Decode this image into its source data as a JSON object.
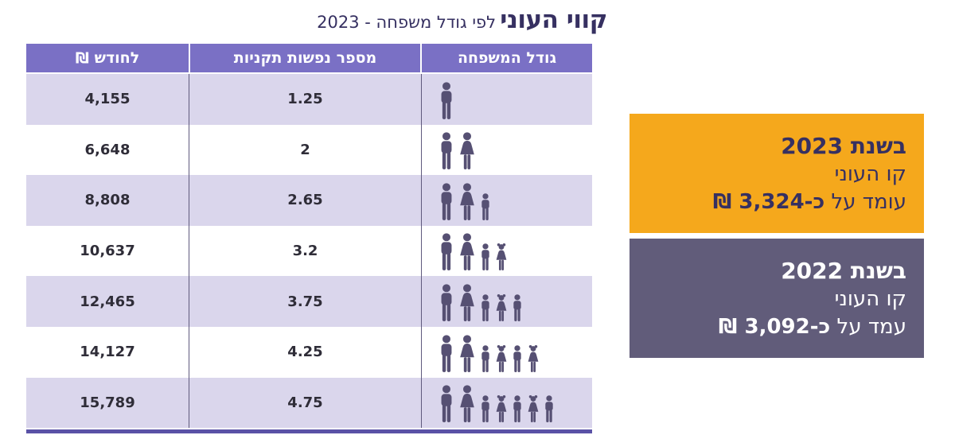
{
  "title": {
    "main": "קווי העוני",
    "subtitle": "לפי גודל משפחה - 2023"
  },
  "table": {
    "headers": {
      "family_size": "גודל המשפחה",
      "standard_persons": "מספר נפשות תקניות",
      "nis_per_month": "לחודש ₪"
    },
    "rows": [
      {
        "nis_per_month": "4,155",
        "standard_persons": "1.25",
        "family": [
          "man"
        ]
      },
      {
        "nis_per_month": "6,648",
        "standard_persons": "2",
        "family": [
          "man",
          "woman"
        ]
      },
      {
        "nis_per_month": "8,808",
        "standard_persons": "2.65",
        "family": [
          "man",
          "woman",
          "boy"
        ]
      },
      {
        "nis_per_month": "10,637",
        "standard_persons": "3.2",
        "family": [
          "man",
          "woman",
          "boy",
          "girl"
        ]
      },
      {
        "nis_per_month": "12,465",
        "standard_persons": "3.75",
        "family": [
          "man",
          "woman",
          "boy",
          "girl",
          "boy"
        ]
      },
      {
        "nis_per_month": "14,127",
        "standard_persons": "4.25",
        "family": [
          "man",
          "woman",
          "boy",
          "girl",
          "boy",
          "girl"
        ]
      },
      {
        "nis_per_month": "15,789",
        "standard_persons": "4.75",
        "family": [
          "man",
          "woman",
          "boy",
          "girl",
          "boy",
          "girl",
          "boy"
        ]
      }
    ]
  },
  "callouts": [
    {
      "title": "בשנת 2023",
      "line2": "קו העוני",
      "line3_prefix": "עומד על",
      "line3_amount": "כ-3,324 ₪"
    },
    {
      "title": "בשנת 2022",
      "line2": "קו העוני",
      "line3_prefix": "עמד על",
      "line3_amount": "כ-3,092 ₪"
    }
  ],
  "colors": {
    "header_purple": "#7a70c5",
    "row_lavender": "#dad6ec",
    "icon_purple": "#565073",
    "title_navy": "#363061",
    "table_border_purple": "#5a52a6",
    "callout_orange": "#f5a81c",
    "callout_gray_purple": "#615c7a",
    "table_text": "#2f2d38",
    "divider_dark": "#5f5a7d"
  },
  "chart_data": {
    "type": "table",
    "title": "קווי העוני לפי גודל משפחה - 2023",
    "columns": [
      "גודל המשפחה",
      "מספר נפשות תקניות",
      "לחודש ₪"
    ],
    "rows": [
      {
        "family_members": 1,
        "standard_persons": 1.25,
        "nis_per_month": 4155
      },
      {
        "family_members": 2,
        "standard_persons": 2,
        "nis_per_month": 6648
      },
      {
        "family_members": 3,
        "standard_persons": 2.65,
        "nis_per_month": 8808
      },
      {
        "family_members": 4,
        "standard_persons": 3.2,
        "nis_per_month": 10637
      },
      {
        "family_members": 5,
        "standard_persons": 3.75,
        "nis_per_month": 12465
      },
      {
        "family_members": 6,
        "standard_persons": 4.25,
        "nis_per_month": 14127
      },
      {
        "family_members": 7,
        "standard_persons": 4.75,
        "nis_per_month": 15789
      }
    ],
    "annotations": [
      {
        "year": 2023,
        "poverty_line_per_standard_person_nis": 3324
      },
      {
        "year": 2022,
        "poverty_line_per_standard_person_nis": 3092
      }
    ]
  }
}
